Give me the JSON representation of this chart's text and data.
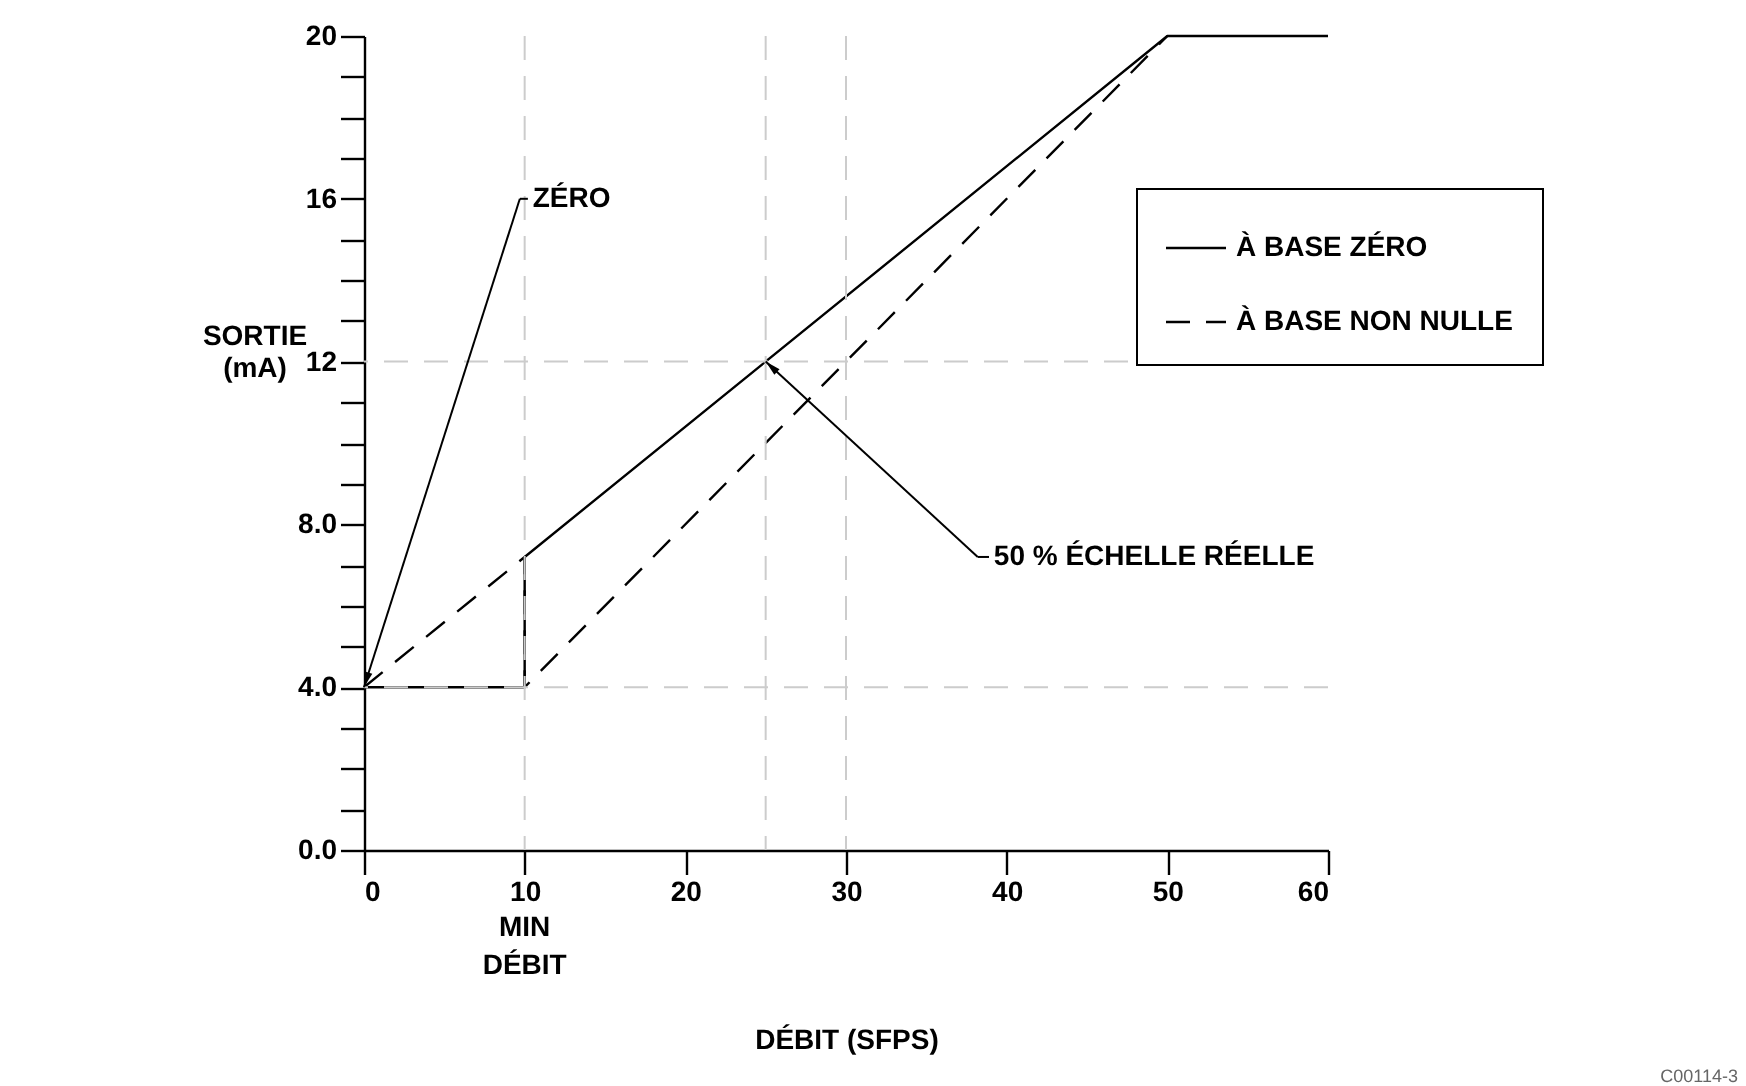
{
  "chart_data": {
    "type": "line",
    "xlabel": "DÉBIT (SFPS)",
    "ylabel": "SORTIE (mA)",
    "xlim": [
      0,
      60
    ],
    "xticks": [
      0,
      10,
      20,
      30,
      40,
      50,
      60
    ],
    "ylim": [
      0,
      20
    ],
    "yticks": [
      {
        "value": 0,
        "label": "0.0"
      },
      {
        "value": 1,
        "label": null
      },
      {
        "value": 2,
        "label": null
      },
      {
        "value": 3,
        "label": null
      },
      {
        "value": 4,
        "label": "4.0"
      },
      {
        "value": 5,
        "label": null
      },
      {
        "value": 6,
        "label": null
      },
      {
        "value": 7,
        "label": null
      },
      {
        "value": 8,
        "label": "8.0"
      },
      {
        "value": 9,
        "label": null
      },
      {
        "value": 10,
        "label": null
      },
      {
        "value": 11,
        "label": null
      },
      12,
      {
        "value": 13,
        "label": null
      },
      {
        "value": 14,
        "label": null
      },
      {
        "value": 15,
        "label": null
      },
      16,
      {
        "value": 17,
        "label": null
      },
      {
        "value": 18,
        "label": null
      },
      {
        "value": 19,
        "label": null
      },
      20
    ],
    "series": [
      {
        "name": "À BASE ZÉRO",
        "color": "#000000",
        "line_style": "solid",
        "x": [
          0,
          10,
          10,
          50,
          60
        ],
        "values": [
          4,
          4,
          7.2,
          20,
          20
        ]
      },
      {
        "name": "À BASE NON NULLE",
        "color": "#000000",
        "line_style": "dashed",
        "x": [
          0,
          10,
          10,
          50
        ],
        "values": [
          4,
          7.2,
          4,
          20
        ]
      }
    ],
    "ref_lines": [
      {
        "axis": "y",
        "value": 12,
        "color": "#cccccc",
        "line_style": "dashed"
      },
      {
        "axis": "y",
        "value": 4,
        "color": "#cccccc",
        "line_style": "dashed"
      },
      {
        "axis": "x",
        "value": 10,
        "color": "#cccccc",
        "line_style": "dashed"
      },
      {
        "axis": "x",
        "value": 25,
        "color": "#cccccc",
        "line_style": "dashed"
      },
      {
        "axis": "x",
        "value": 30,
        "color": "#cccccc",
        "line_style": "dashed"
      }
    ],
    "annotations": [
      {
        "text": "ZÉRO",
        "x": 0,
        "y": 4
      },
      {
        "text": "50 % ÉCHELLE RÉELLE",
        "x": 25,
        "y": 12
      },
      "MIN DÉBIT",
      "C00114-3"
    ],
    "legend": "top right"
  }
}
